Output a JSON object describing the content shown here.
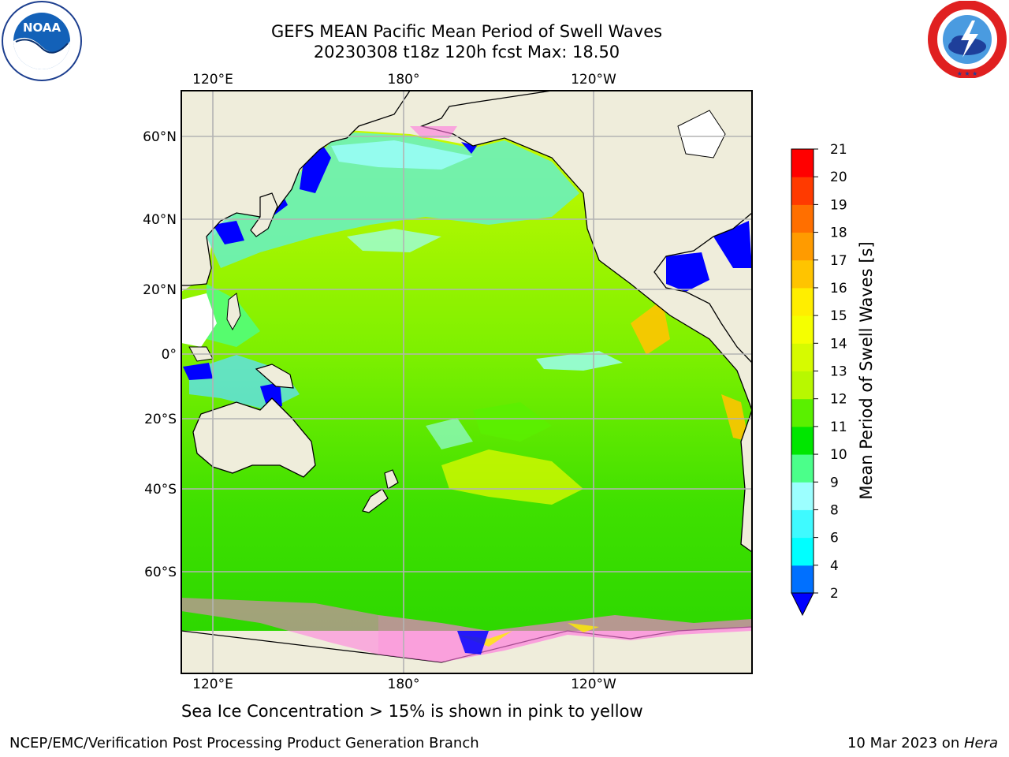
{
  "title": {
    "line1": "GEFS MEAN Pacific Mean Period of Swell Waves",
    "line2": "20230308 t18z 120h fcst   Max: 18.50"
  },
  "map": {
    "lon_ticks_top": [
      "120°E",
      "180°",
      "120°W"
    ],
    "lon_ticks_bottom": [
      "120°E",
      "180°",
      "120°W"
    ],
    "lat_ticks": [
      "60°N",
      "40°N",
      "20°N",
      "0°",
      "20°S",
      "40°S",
      "60°S"
    ],
    "land_color": "#efeddb",
    "grid_color": "#b3b3b3"
  },
  "colorbar": {
    "title": "Mean Period of Swell Waves [s]",
    "levels": [
      "2",
      "4",
      "6",
      "8",
      "9",
      "10",
      "11",
      "12",
      "13",
      "14",
      "15",
      "16",
      "17",
      "18",
      "19",
      "20",
      "21"
    ],
    "colors": [
      "#0070ff",
      "#00ffff",
      "#3ffaff",
      "#9cffff",
      "#4bff8a",
      "#00e600",
      "#5af000",
      "#b8f800",
      "#d6fb00",
      "#f5ff00",
      "#ffee00",
      "#ffc400",
      "#ff9b00",
      "#ff6f00",
      "#ff3a00",
      "#ff0000"
    ],
    "extend_color": "#0000ff"
  },
  "caption": "Sea Ice Concentration > 15% is shown in pink to yellow",
  "footer": {
    "left": "NCEP/EMC/Verification Post Processing Product Generation Branch",
    "right_date": "10 Mar 2023 on ",
    "right_host": "Hera"
  },
  "logos": {
    "noaa_text": "NOAA",
    "nws_ring_text": "NATIONAL WEATHER SERVICE"
  }
}
